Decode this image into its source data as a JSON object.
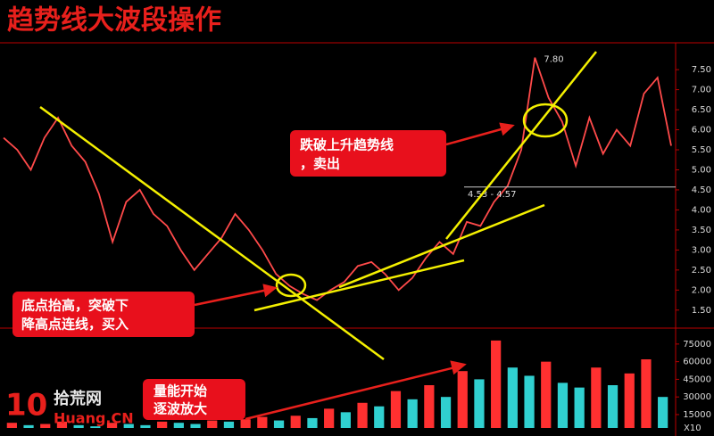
{
  "title": "趋势线大波段操作",
  "chart_data": [
    {
      "type": "line",
      "color": "#ff4a4a",
      "values": [
        5.8,
        5.5,
        5.0,
        5.8,
        6.3,
        5.6,
        5.2,
        4.4,
        3.2,
        4.2,
        4.5,
        3.9,
        3.6,
        3.0,
        2.5,
        2.9,
        3.3,
        3.9,
        3.5,
        3.0,
        2.4,
        2.1,
        1.9,
        1.75,
        2.0,
        2.2,
        2.6,
        2.7,
        2.4,
        2.0,
        2.3,
        2.8,
        3.2,
        2.9,
        3.7,
        3.6,
        4.2,
        4.6,
        5.5,
        7.8,
        6.8,
        6.2,
        5.1,
        6.3,
        5.4,
        6.0,
        5.6,
        6.9,
        7.3,
        5.6
      ],
      "ylim": [
        1.05,
        8.17
      ],
      "yticks": [
        {
          "value": 1.5,
          "label": "1.50"
        },
        {
          "value": 2,
          "label": "2.00"
        },
        {
          "value": 2.5,
          "label": "2.50"
        },
        {
          "value": 3,
          "label": "3.00"
        },
        {
          "value": 3.5,
          "label": "3.50"
        },
        {
          "value": 4,
          "label": "4.00"
        },
        {
          "value": 4.5,
          "label": "4.50"
        },
        {
          "value": 5,
          "label": "5.00"
        },
        {
          "value": 5.5,
          "label": "5.50"
        },
        {
          "value": 6,
          "label": "6.00"
        },
        {
          "value": 6.5,
          "label": "6.50"
        },
        {
          "value": 7,
          "label": "7.00"
        },
        {
          "value": 7.5,
          "label": "7.50"
        }
      ],
      "high_label": {
        "value": 7.8,
        "label": "7.80"
      },
      "level_label": "4.53 - 4.57",
      "level": 4.57
    },
    {
      "type": "bar",
      "up_color": "#ff3030",
      "down_color": "#30d0d0",
      "values": [
        8000,
        6000,
        7000,
        9000,
        6000,
        5000,
        8000,
        7000,
        6000,
        9000,
        8000,
        7000,
        10000,
        9000,
        11000,
        13000,
        10000,
        14000,
        12000,
        20000,
        17000,
        25000,
        22000,
        35000,
        28000,
        40000,
        30000,
        52000,
        45000,
        78000,
        55000,
        48000,
        60000,
        42000,
        38000,
        55000,
        40000,
        50000,
        62000,
        30000
      ],
      "ylim": [
        3600,
        84000
      ],
      "yticks": [
        15000,
        30000,
        45000,
        60000,
        75000
      ],
      "scale_label": "X10"
    }
  ],
  "annotations": {
    "sell": [
      "跌破上升趋势线",
      "，卖出"
    ],
    "buy": [
      "底点抬高，突破下",
      "降高点连线，买入"
    ],
    "volume": [
      "量能开始",
      "逐波放大"
    ]
  },
  "logo": {
    "number": "10",
    "name": "拾荒网",
    "site": "Huang.CN"
  }
}
